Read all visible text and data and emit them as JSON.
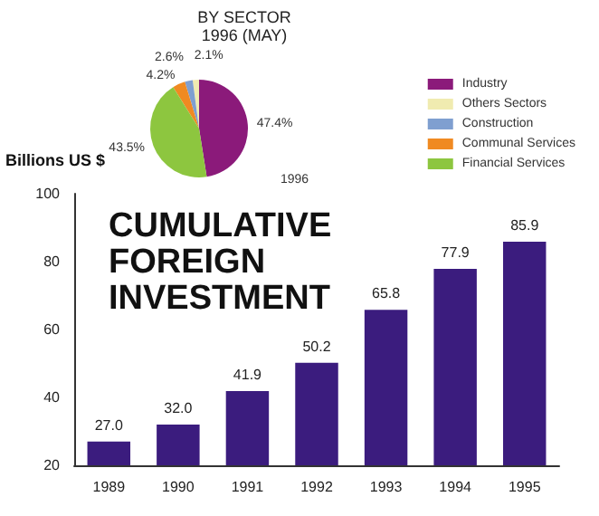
{
  "chart_data": [
    {
      "type": "pie",
      "title": "BY SECTOR",
      "subtitle": "1996 (MAY)",
      "categories": [
        "Industry",
        "Others Sectors",
        "Construction",
        "Communal Services",
        "Financial Services"
      ],
      "values": [
        47.4,
        2.1,
        2.6,
        4.2,
        43.5
      ],
      "colors": [
        "#8b1a7a",
        "#f0ebb0",
        "#7f9fd0",
        "#f08a22",
        "#8dc63f"
      ],
      "value_labels": [
        "47.4%",
        "2.1%",
        "2.6%",
        "4.2%",
        "43.5%"
      ],
      "legend": "right",
      "annotations": [
        "1996"
      ]
    },
    {
      "type": "bar",
      "ylabel": "Billions US $",
      "categories": [
        "1989",
        "1990",
        "1991",
        "1992",
        "1993",
        "1994",
        "1995"
      ],
      "values": [
        27.0,
        32.0,
        41.9,
        50.2,
        65.8,
        77.9,
        85.9
      ],
      "value_labels": [
        "27.0",
        "32.0",
        "41.9",
        "50.2",
        "65.8",
        "77.9",
        "85.9"
      ],
      "color": "#3b1c7e",
      "ylim": [
        20,
        100
      ],
      "yticks": [
        20,
        40,
        60,
        80,
        100
      ],
      "grid": false,
      "annotations": [
        "CUMULATIVE FOREIGN INVESTMENT"
      ]
    }
  ]
}
